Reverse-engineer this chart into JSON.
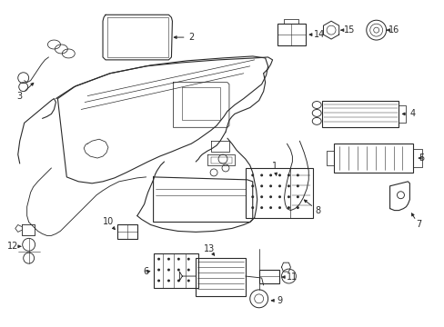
{
  "background_color": "#ffffff",
  "line_color": "#2a2a2a",
  "line_width": 0.8,
  "label_fontsize": 7.0,
  "fig_width": 4.89,
  "fig_height": 3.6,
  "dpi": 100
}
